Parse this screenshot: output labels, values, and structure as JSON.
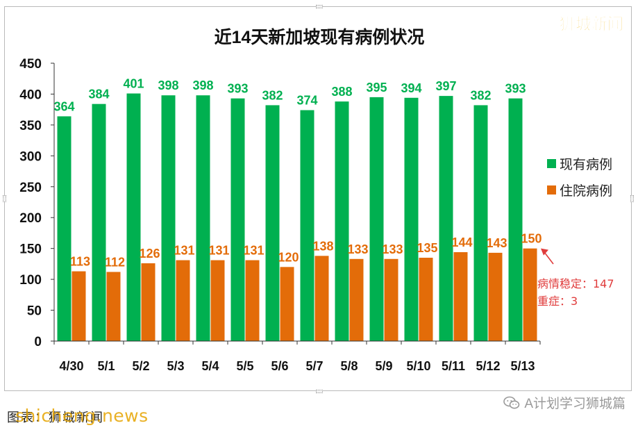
{
  "watermark_top": "狮城新闻",
  "footer": {
    "caption": "图表：狮城新闻",
    "watermark": "shicheng.news",
    "account": "A计划学习狮城篇",
    "account_icon": "wechat-icon"
  },
  "colors": {
    "green": "#00b050",
    "orange": "#e36c09",
    "annotation": "#e03c3c",
    "watermark": "#f0b400"
  },
  "chart_data": {
    "type": "bar",
    "title": "近14天新加坡现有病例状况",
    "categories": [
      "4/30",
      "5/1",
      "5/2",
      "5/3",
      "5/4",
      "5/5",
      "5/6",
      "5/7",
      "5/8",
      "5/9",
      "5/10",
      "5/11",
      "5/12",
      "5/13"
    ],
    "series": [
      {
        "name": "现有病例",
        "color": "#00b050",
        "values": [
          364,
          384,
          401,
          398,
          398,
          393,
          382,
          374,
          388,
          395,
          394,
          397,
          382,
          393
        ]
      },
      {
        "name": "住院病例",
        "color": "#e36c09",
        "values": [
          113,
          112,
          126,
          131,
          131,
          131,
          120,
          138,
          133,
          133,
          135,
          144,
          143,
          150
        ]
      }
    ],
    "ylim": [
      0,
      450
    ],
    "yticks": [
      0,
      50,
      100,
      150,
      200,
      250,
      300,
      350,
      400,
      450
    ],
    "grid": false,
    "legend_position": "right",
    "annotation": {
      "lines": [
        "病情稳定：147",
        "重症：3"
      ],
      "points_to": {
        "category": "5/13",
        "series": "住院病例"
      }
    }
  }
}
